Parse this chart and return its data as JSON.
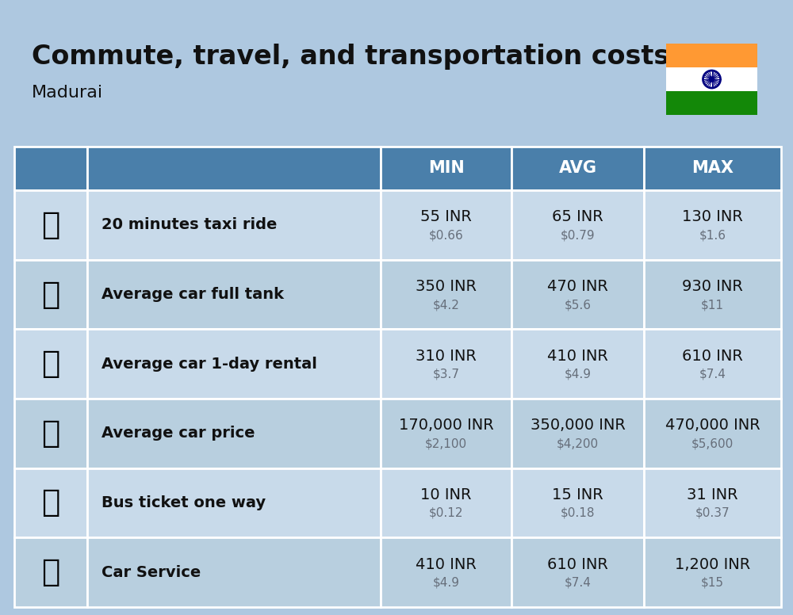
{
  "title": "Commute, travel, and transportation costs",
  "subtitle": "Madurai",
  "bg_color": "#aec8e0",
  "header_bg": "#4a7faa",
  "header_text_color": "#ffffff",
  "row_bg_light": "#c8daea",
  "row_bg_dark": "#b8cfdf",
  "col_headers": [
    "MIN",
    "AVG",
    "MAX"
  ],
  "rows": [
    {
      "label": "20 minutes taxi ride",
      "emoji": "🚕",
      "min_inr": "55 INR",
      "min_usd": "$0.66",
      "avg_inr": "65 INR",
      "avg_usd": "$0.79",
      "max_inr": "130 INR",
      "max_usd": "$1.6"
    },
    {
      "label": "Average car full tank",
      "emoji": "⛽",
      "min_inr": "350 INR",
      "min_usd": "$4.2",
      "avg_inr": "470 INR",
      "avg_usd": "$5.6",
      "max_inr": "930 INR",
      "max_usd": "$11"
    },
    {
      "label": "Average car 1-day rental",
      "emoji": "🚙",
      "min_inr": "310 INR",
      "min_usd": "$3.7",
      "avg_inr": "410 INR",
      "avg_usd": "$4.9",
      "max_inr": "610 INR",
      "max_usd": "$7.4"
    },
    {
      "label": "Average car price",
      "emoji": "🚗",
      "min_inr": "170,000 INR",
      "min_usd": "$2,100",
      "avg_inr": "350,000 INR",
      "avg_usd": "$4,200",
      "max_inr": "470,000 INR",
      "max_usd": "$5,600"
    },
    {
      "label": "Bus ticket one way",
      "emoji": "🚌",
      "min_inr": "10 INR",
      "min_usd": "$0.12",
      "avg_inr": "15 INR",
      "avg_usd": "$0.18",
      "max_inr": "31 INR",
      "max_usd": "$0.37"
    },
    {
      "label": "Car Service",
      "emoji": "🔧",
      "min_inr": "410 INR",
      "min_usd": "$4.9",
      "avg_inr": "610 INR",
      "avg_usd": "$7.4",
      "max_inr": "1,200 INR",
      "max_usd": "$15"
    }
  ],
  "title_fontsize": 24,
  "subtitle_fontsize": 16,
  "header_fontsize": 15,
  "row_label_fontsize": 14,
  "row_value_fontsize": 14,
  "row_subvalue_fontsize": 11,
  "emoji_fontsize": 28
}
